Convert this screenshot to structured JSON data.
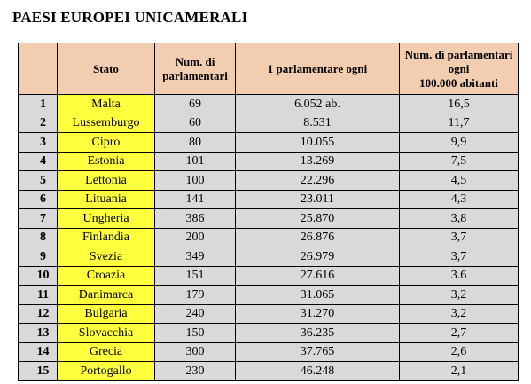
{
  "title": "PAESI EUROPEI UNICAMERALI",
  "headers": {
    "idx": "",
    "stato": "Stato",
    "num_line1": "Num. di",
    "num_line2": "parlamentari",
    "ogni": "1 parlamentare ogni",
    "per100k_line1": "Num. di parlamentari",
    "per100k_line2": "ogni",
    "per100k_line3": "100.000 abitanti"
  },
  "rows": [
    {
      "idx": "1",
      "stato": "Malta",
      "num": "69",
      "ogni": "6.052 ab.",
      "per100k": "16,5"
    },
    {
      "idx": "2",
      "stato": "Lussemburgo",
      "num": "60",
      "ogni": "8.531",
      "per100k": "11,7"
    },
    {
      "idx": "3",
      "stato": "Cipro",
      "num": "80",
      "ogni": "10.055",
      "per100k": "9,9"
    },
    {
      "idx": "4",
      "stato": "Estonia",
      "num": "101",
      "ogni": "13.269",
      "per100k": "7,5"
    },
    {
      "idx": "5",
      "stato": "Lettonia",
      "num": "100",
      "ogni": "22.296",
      "per100k": "4,5"
    },
    {
      "idx": "6",
      "stato": "Lituania",
      "num": "141",
      "ogni": "23.011",
      "per100k": "4,3"
    },
    {
      "idx": "7",
      "stato": "Ungheria",
      "num": "386",
      "ogni": "25.870",
      "per100k": "3,8"
    },
    {
      "idx": "8",
      "stato": "Finlandia",
      "num": "200",
      "ogni": "26.876",
      "per100k": "3,7"
    },
    {
      "idx": "9",
      "stato": "Svezia",
      "num": "349",
      "ogni": "26.979",
      "per100k": "3,7"
    },
    {
      "idx": "10",
      "stato": "Croazia",
      "num": "151",
      "ogni": "27.616",
      "per100k": "3.6"
    },
    {
      "idx": "11",
      "stato": "Danimarca",
      "num": "179",
      "ogni": "31.065",
      "per100k": "3,2"
    },
    {
      "idx": "12",
      "stato": "Bulgaria",
      "num": "240",
      "ogni": "31.270",
      "per100k": "3,2"
    },
    {
      "idx": "13",
      "stato": "Slovacchia",
      "num": "150",
      "ogni": "36.235",
      "per100k": "2,7"
    },
    {
      "idx": "14",
      "stato": "Grecia",
      "num": "300",
      "ogni": "37.765",
      "per100k": "2,6"
    },
    {
      "idx": "15",
      "stato": "Portogallo",
      "num": "230",
      "ogni": "46.248",
      "per100k": "2,1"
    }
  ],
  "colors": {
    "header_bg": "#f2cdb0",
    "stato_bg": "#ffff3d",
    "cell_bg": "#d9d9d9"
  }
}
